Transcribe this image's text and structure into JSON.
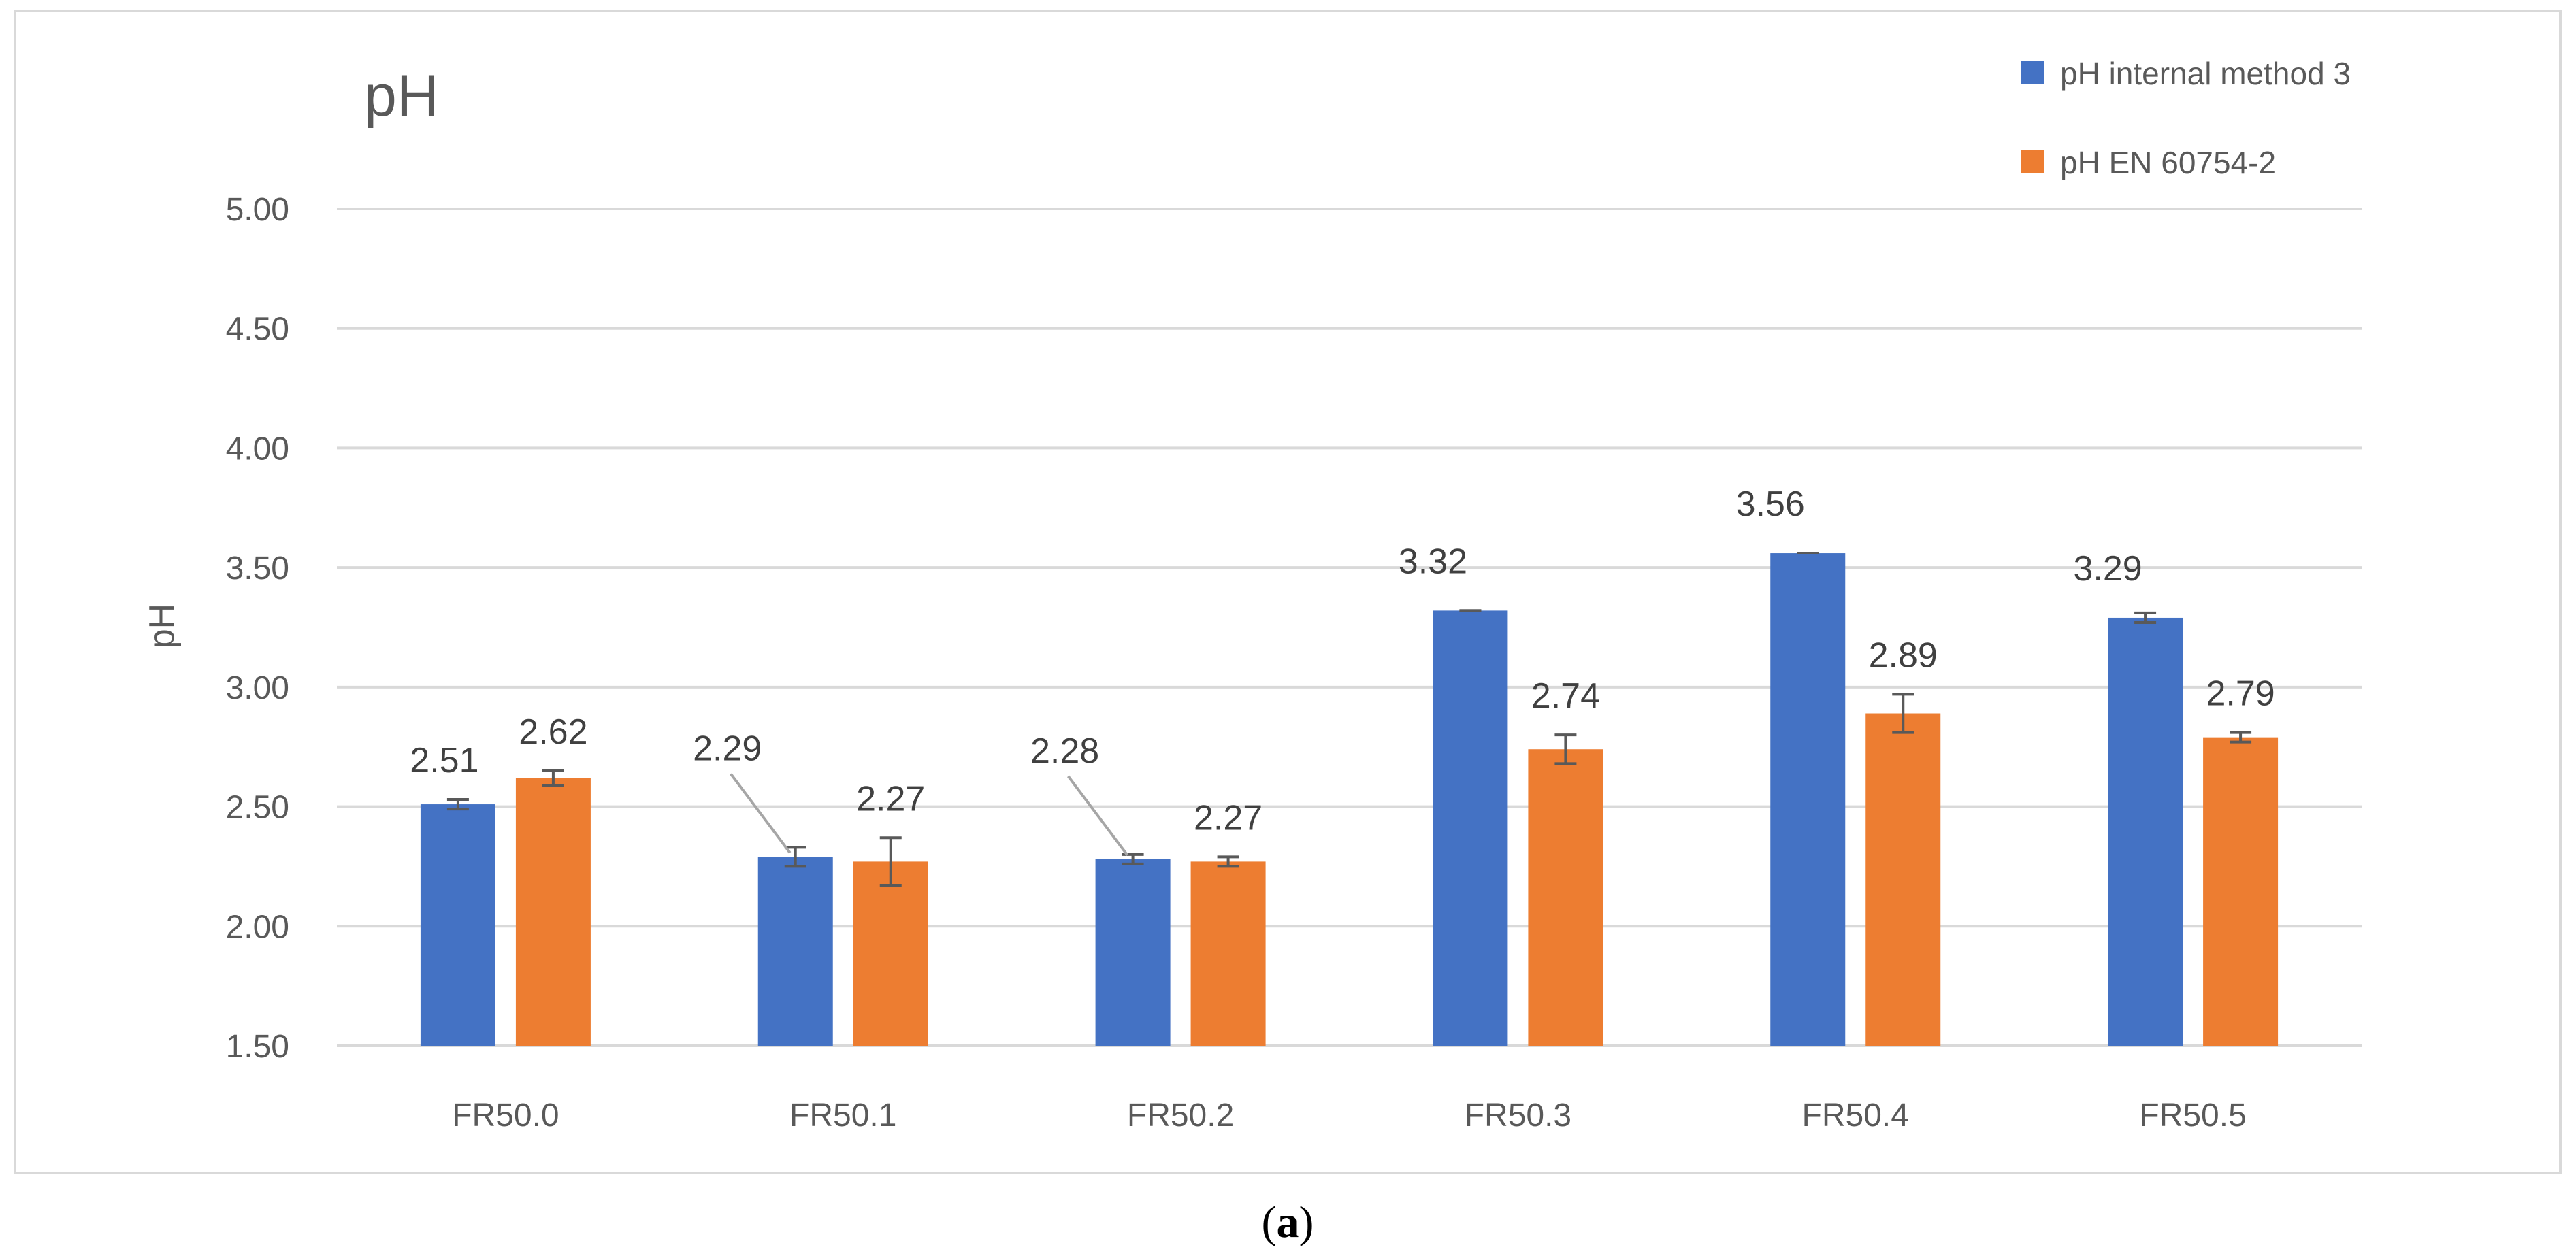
{
  "chart_data": {
    "type": "bar",
    "title": "pH",
    "xlabel": "",
    "ylabel": "pH",
    "ylim": [
      1.5,
      5.0
    ],
    "yticks": [
      1.5,
      2.0,
      2.5,
      3.0,
      3.5,
      4.0,
      4.5,
      5.0
    ],
    "ytick_labels": [
      "1.50",
      "2.00",
      "2.50",
      "3.00",
      "3.50",
      "4.00",
      "4.50",
      "5.00"
    ],
    "grid": true,
    "legend_position": "top-right",
    "categories": [
      "FR50.0",
      "FR50.1",
      "FR50.2",
      "FR50.3",
      "FR50.4",
      "FR50.5"
    ],
    "series": [
      {
        "name": "pH internal method 3",
        "color": "#4472C4",
        "values": [
          2.51,
          2.29,
          2.28,
          3.32,
          3.56,
          3.29
        ],
        "errors": [
          0.02,
          0.04,
          0.02,
          0.0,
          0.0,
          0.02
        ],
        "labels": [
          "2.51",
          "2.29",
          "2.28",
          "3.32",
          "3.56",
          "3.29"
        ]
      },
      {
        "name": "pH EN 60754-2",
        "color": "#ED7D31",
        "values": [
          2.62,
          2.27,
          2.27,
          2.74,
          2.89,
          2.79
        ],
        "errors": [
          0.03,
          0.1,
          0.02,
          0.06,
          0.08,
          0.02
        ],
        "labels": [
          "2.62",
          "2.27",
          "2.27",
          "2.74",
          "2.89",
          "2.79"
        ]
      }
    ]
  },
  "caption": {
    "open": "(",
    "letter": "a",
    "close": ")"
  }
}
